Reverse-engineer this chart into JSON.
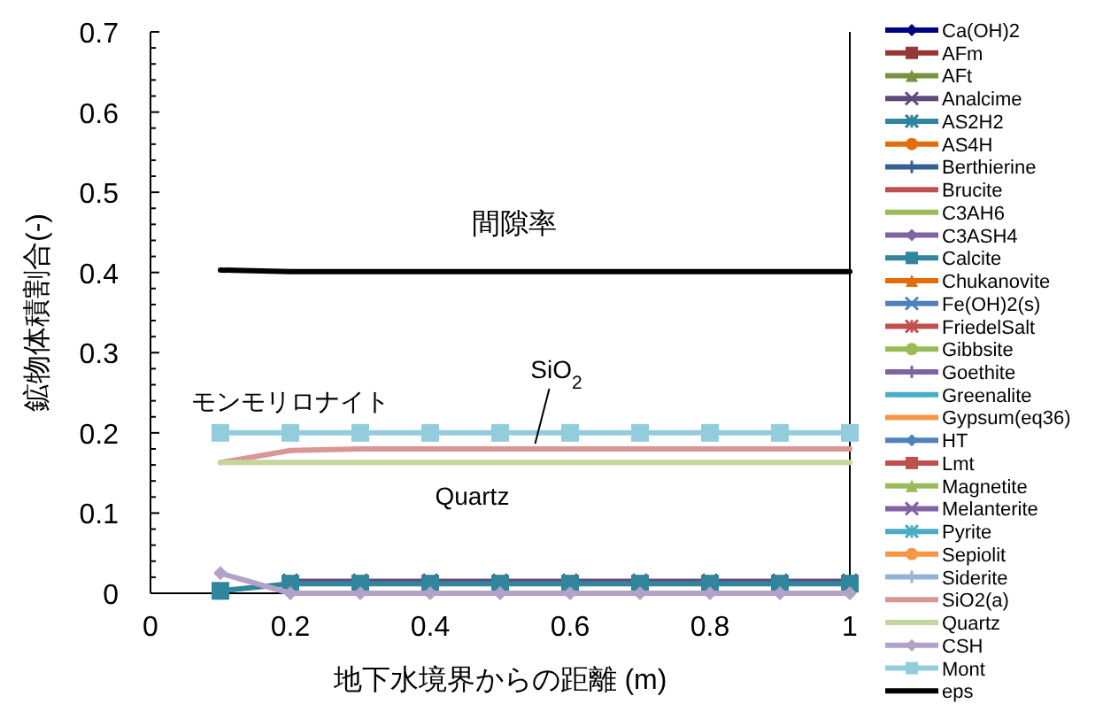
{
  "chart_data": {
    "type": "line",
    "xlabel": "地下水境界からの距離 (m)",
    "ylabel": "鉱物体積割合(-)",
    "x": [
      0.1,
      0.2,
      0.3,
      0.4,
      0.5,
      0.6,
      0.7,
      0.8,
      0.9,
      1.0
    ],
    "xlim": [
      0,
      1
    ],
    "xticks": [
      0,
      0.2,
      0.4,
      0.6,
      0.8,
      1
    ],
    "ylim": [
      0,
      0.7
    ],
    "yticks": [
      0,
      0.1,
      0.2,
      0.3,
      0.4,
      0.5,
      0.6,
      0.7
    ],
    "grid": false,
    "legend": "right",
    "series": [
      {
        "name": "Ca(OH)2",
        "color": "#000080",
        "marker": "diamond",
        "values": [
          null,
          null,
          null,
          null,
          null,
          null,
          null,
          null,
          null,
          null
        ]
      },
      {
        "name": "AFm",
        "color": "#953735",
        "marker": "square",
        "values": [
          null,
          null,
          null,
          null,
          null,
          null,
          null,
          null,
          null,
          null
        ]
      },
      {
        "name": "AFt",
        "color": "#77933c",
        "marker": "triangle",
        "values": [
          null,
          null,
          null,
          null,
          null,
          null,
          null,
          null,
          null,
          null
        ]
      },
      {
        "name": "Analcime",
        "color": "#604a7b",
        "marker": "cross",
        "values": [
          null,
          0.015,
          0.015,
          0.015,
          0.015,
          0.015,
          0.015,
          0.015,
          0.015,
          0.015
        ]
      },
      {
        "name": "AS2H2",
        "color": "#31859c",
        "marker": "star",
        "values": [
          null,
          null,
          null,
          null,
          null,
          null,
          null,
          null,
          null,
          null
        ]
      },
      {
        "name": "AS4H",
        "color": "#e46c0a",
        "marker": "circle",
        "values": [
          null,
          null,
          null,
          null,
          null,
          null,
          null,
          null,
          null,
          null
        ]
      },
      {
        "name": "Berthierine",
        "color": "#376092",
        "marker": "plus",
        "values": [
          null,
          null,
          null,
          null,
          null,
          null,
          null,
          null,
          null,
          null
        ]
      },
      {
        "name": "Brucite",
        "color": "#c0504d",
        "marker": "none",
        "values": [
          null,
          null,
          null,
          null,
          null,
          null,
          null,
          null,
          null,
          null
        ]
      },
      {
        "name": "C3AH6",
        "color": "#9bbb59",
        "marker": "none",
        "values": [
          null,
          null,
          null,
          null,
          null,
          null,
          null,
          null,
          null,
          null
        ]
      },
      {
        "name": "C3ASH4",
        "color": "#8064a2",
        "marker": "diamond",
        "values": [
          null,
          null,
          null,
          null,
          null,
          null,
          null,
          null,
          null,
          null
        ]
      },
      {
        "name": "Calcite",
        "color": "#31859c",
        "marker": "square",
        "values": [
          0.003,
          0.012,
          0.012,
          0.012,
          0.012,
          0.012,
          0.012,
          0.012,
          0.012,
          0.012
        ]
      },
      {
        "name": "Chukanovite",
        "color": "#e46c0a",
        "marker": "triangle",
        "values": [
          null,
          null,
          null,
          null,
          null,
          null,
          null,
          null,
          null,
          null
        ]
      },
      {
        "name": "Fe(OH)2(s)",
        "color": "#4f81bd",
        "marker": "cross",
        "values": [
          null,
          null,
          null,
          null,
          null,
          null,
          null,
          null,
          null,
          null
        ]
      },
      {
        "name": "FriedelSalt",
        "color": "#c0504d",
        "marker": "star",
        "values": [
          null,
          null,
          null,
          null,
          null,
          null,
          null,
          null,
          null,
          null
        ]
      },
      {
        "name": "Gibbsite",
        "color": "#9bbb59",
        "marker": "circle",
        "values": [
          null,
          null,
          null,
          null,
          null,
          null,
          null,
          null,
          null,
          null
        ]
      },
      {
        "name": "Goethite",
        "color": "#8064a2",
        "marker": "plus",
        "values": [
          null,
          null,
          null,
          null,
          null,
          null,
          null,
          null,
          null,
          null
        ]
      },
      {
        "name": "Greenalite",
        "color": "#4bacc6",
        "marker": "none",
        "values": [
          null,
          null,
          null,
          null,
          null,
          null,
          null,
          null,
          null,
          null
        ]
      },
      {
        "name": "Gypsum(eq36)",
        "color": "#f79646",
        "marker": "none",
        "values": [
          null,
          null,
          null,
          null,
          null,
          null,
          null,
          null,
          null,
          null
        ]
      },
      {
        "name": "HT",
        "color": "#4f81bd",
        "marker": "diamond",
        "values": [
          null,
          null,
          null,
          null,
          null,
          null,
          null,
          null,
          null,
          null
        ]
      },
      {
        "name": "Lmt",
        "color": "#c0504d",
        "marker": "square",
        "values": [
          null,
          null,
          null,
          null,
          null,
          null,
          null,
          null,
          null,
          null
        ]
      },
      {
        "name": "Magnetite",
        "color": "#9bbb59",
        "marker": "triangle",
        "values": [
          null,
          null,
          null,
          null,
          null,
          null,
          null,
          null,
          null,
          null
        ]
      },
      {
        "name": "Melanterite",
        "color": "#8064a2",
        "marker": "cross",
        "values": [
          null,
          null,
          null,
          null,
          null,
          null,
          null,
          null,
          null,
          null
        ]
      },
      {
        "name": "Pyrite",
        "color": "#4bacc6",
        "marker": "star",
        "values": [
          null,
          null,
          null,
          null,
          null,
          null,
          null,
          null,
          null,
          null
        ]
      },
      {
        "name": "Sepiolit",
        "color": "#f79646",
        "marker": "circle",
        "values": [
          null,
          null,
          null,
          null,
          null,
          null,
          null,
          null,
          null,
          null
        ]
      },
      {
        "name": "Siderite",
        "color": "#95b3d7",
        "marker": "plus",
        "values": [
          null,
          null,
          null,
          null,
          null,
          null,
          null,
          null,
          null,
          null
        ]
      },
      {
        "name": "SiO2(a)",
        "color": "#d99694",
        "marker": "none",
        "values": [
          0.163,
          0.178,
          0.18,
          0.18,
          0.18,
          0.18,
          0.18,
          0.18,
          0.18,
          0.18
        ]
      },
      {
        "name": "Quartz",
        "color": "#c3d69b",
        "marker": "none",
        "values": [
          0.163,
          0.163,
          0.163,
          0.163,
          0.163,
          0.163,
          0.163,
          0.163,
          0.163,
          0.163
        ]
      },
      {
        "name": "CSH",
        "color": "#b3a2c7",
        "marker": "diamond",
        "values": [
          0.025,
          0,
          0,
          0,
          0,
          0,
          0,
          0,
          0,
          0
        ]
      },
      {
        "name": "Mont",
        "color": "#93cddd",
        "marker": "square",
        "values": [
          0.2,
          0.2,
          0.2,
          0.2,
          0.2,
          0.2,
          0.2,
          0.2,
          0.2,
          0.2
        ]
      },
      {
        "name": "eps",
        "color": "#000000",
        "marker": "none",
        "values": [
          0.403,
          0.401,
          0.401,
          0.401,
          0.401,
          0.401,
          0.401,
          0.401,
          0.401,
          0.401
        ]
      }
    ],
    "annotations": [
      {
        "text": "間隙率",
        "x": 0.52,
        "y": 0.401
      },
      {
        "text": "モンモリロナイト",
        "x": 0.2,
        "y": 0.2
      },
      {
        "text": "SiO$_{2}$",
        "x": 0.55,
        "y": 0.18
      },
      {
        "text": "Quartz",
        "x": 0.46,
        "y": 0.163
      }
    ]
  }
}
